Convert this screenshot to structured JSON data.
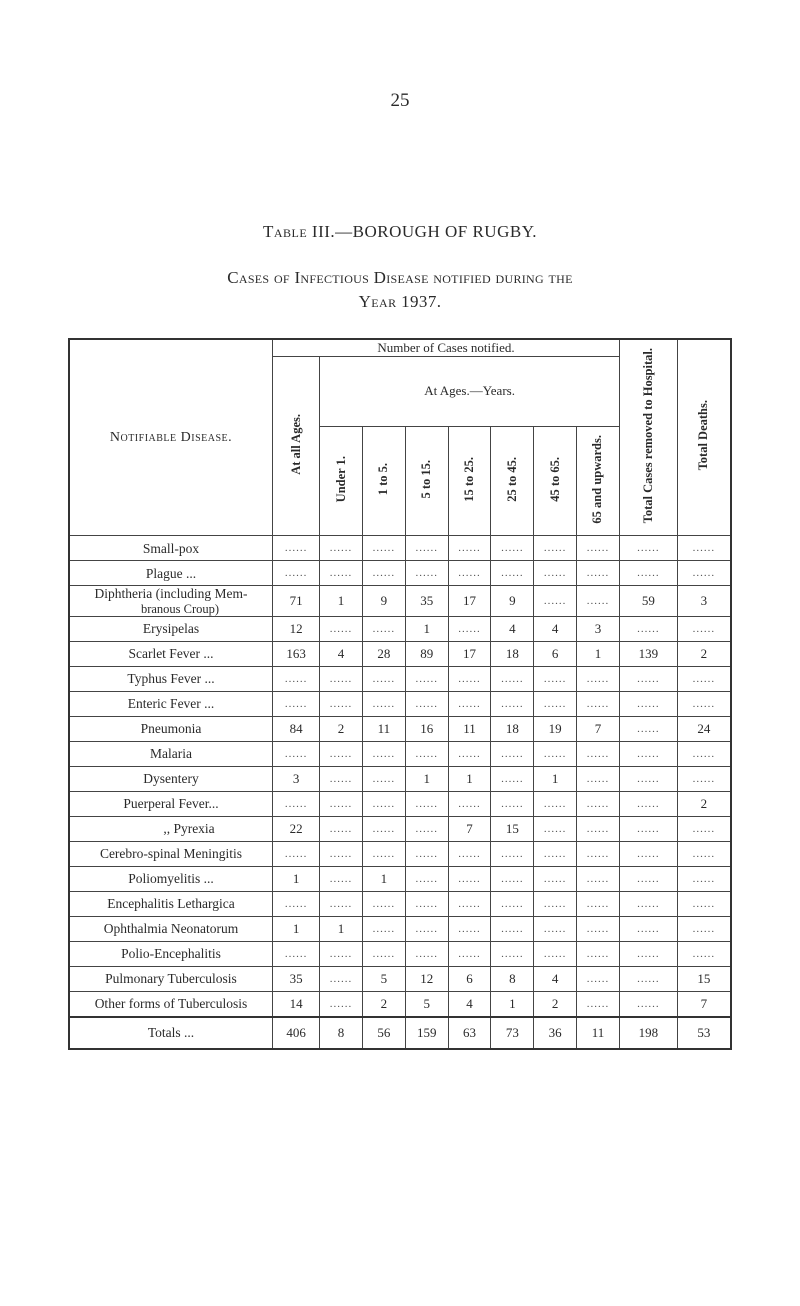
{
  "pageNumber": "25",
  "heading1": "Table III.—BOROUGH OF RUGBY.",
  "heading2": "Cases of Infectious Disease notified during the",
  "heading3": "Year 1937.",
  "labels": {
    "notifiable": "Notifiable Disease.",
    "numberNotified": "Number of Cases notified.",
    "atAgesYears": "At Ages.—Years.",
    "atAllAges": "At all Ages.",
    "under1": "Under 1.",
    "a1to5": "1 to 5.",
    "a5to15": "5 to 15.",
    "a15to25": "15 to 25.",
    "a25to45": "25 to 45.",
    "a45to65": "45 to 65.",
    "a65up": "65 and upwards.",
    "removed": "Total Cases removed to Hospital.",
    "deaths": "Total Deaths."
  },
  "rows": [
    {
      "name": "Small-pox",
      "vals": [
        "",
        "",
        "",
        "",
        "",
        "",
        "",
        "",
        "",
        ""
      ]
    },
    {
      "name": "Plague   ...",
      "vals": [
        "",
        "",
        "",
        "",
        "",
        "",
        "",
        "",
        "",
        ""
      ]
    },
    {
      "name": "Diphtheria (including Mem-\nbranous Croup)",
      "vals": [
        "71",
        "1",
        "9",
        "35",
        "17",
        "9",
        "",
        "",
        "59",
        "3"
      ]
    },
    {
      "name": "Erysipelas",
      "vals": [
        "12",
        "",
        "",
        "1",
        "",
        "4",
        "4",
        "3",
        "",
        ""
      ]
    },
    {
      "name": "Scarlet Fever   ...",
      "vals": [
        "163",
        "4",
        "28",
        "89",
        "17",
        "18",
        "6",
        "1",
        "139",
        "2"
      ]
    },
    {
      "name": "Typhus Fever   ...",
      "vals": [
        "",
        "",
        "",
        "",
        "",
        "",
        "",
        "",
        "",
        ""
      ]
    },
    {
      "name": "Enteric Fever   ...",
      "vals": [
        "",
        "",
        "",
        "",
        "",
        "",
        "",
        "",
        "",
        ""
      ]
    },
    {
      "name": "Pneumonia",
      "vals": [
        "84",
        "2",
        "11",
        "16",
        "11",
        "18",
        "19",
        "7",
        "",
        "24"
      ]
    },
    {
      "name": "Malaria",
      "vals": [
        "",
        "",
        "",
        "",
        "",
        "",
        "",
        "",
        "",
        ""
      ]
    },
    {
      "name": "Dysentery",
      "vals": [
        "3",
        "",
        "",
        "1",
        "1",
        "",
        "1",
        "",
        "",
        ""
      ]
    },
    {
      "name": "Puerperal Fever...",
      "vals": [
        "",
        "",
        "",
        "",
        "",
        "",
        "",
        "",
        "",
        "2"
      ]
    },
    {
      "name": ",,    Pyrexia",
      "indent": true,
      "vals": [
        "22",
        "",
        "",
        "",
        "7",
        "15",
        "",
        "",
        "",
        ""
      ]
    },
    {
      "name": "Cerebro-spinal Meningitis",
      "vals": [
        "",
        "",
        "",
        "",
        "",
        "",
        "",
        "",
        "",
        ""
      ]
    },
    {
      "name": "Poliomyelitis   ...",
      "vals": [
        "1",
        "",
        "1",
        "",
        "",
        "",
        "",
        "",
        "",
        ""
      ]
    },
    {
      "name": "Encephalitis Lethargica",
      "vals": [
        "",
        "",
        "",
        "",
        "",
        "",
        "",
        "",
        "",
        ""
      ]
    },
    {
      "name": "Ophthalmia Neonatorum",
      "vals": [
        "1",
        "1",
        "",
        "",
        "",
        "",
        "",
        "",
        "",
        ""
      ]
    },
    {
      "name": "Polio-Encephalitis",
      "vals": [
        "",
        "",
        "",
        "",
        "",
        "",
        "",
        "",
        "",
        ""
      ]
    },
    {
      "name": "Pulmonary Tuberculosis",
      "vals": [
        "35",
        "",
        "5",
        "12",
        "6",
        "8",
        "4",
        "",
        "",
        "15"
      ]
    },
    {
      "name": "Other forms of Tuberculosis",
      "vals": [
        "14",
        "",
        "2",
        "5",
        "4",
        "1",
        "2",
        "",
        "",
        "7"
      ]
    }
  ],
  "totals": {
    "name": "Totals ...",
    "vals": [
      "406",
      "8",
      "56",
      "159",
      "63",
      "73",
      "36",
      "11",
      "198",
      "53"
    ]
  }
}
